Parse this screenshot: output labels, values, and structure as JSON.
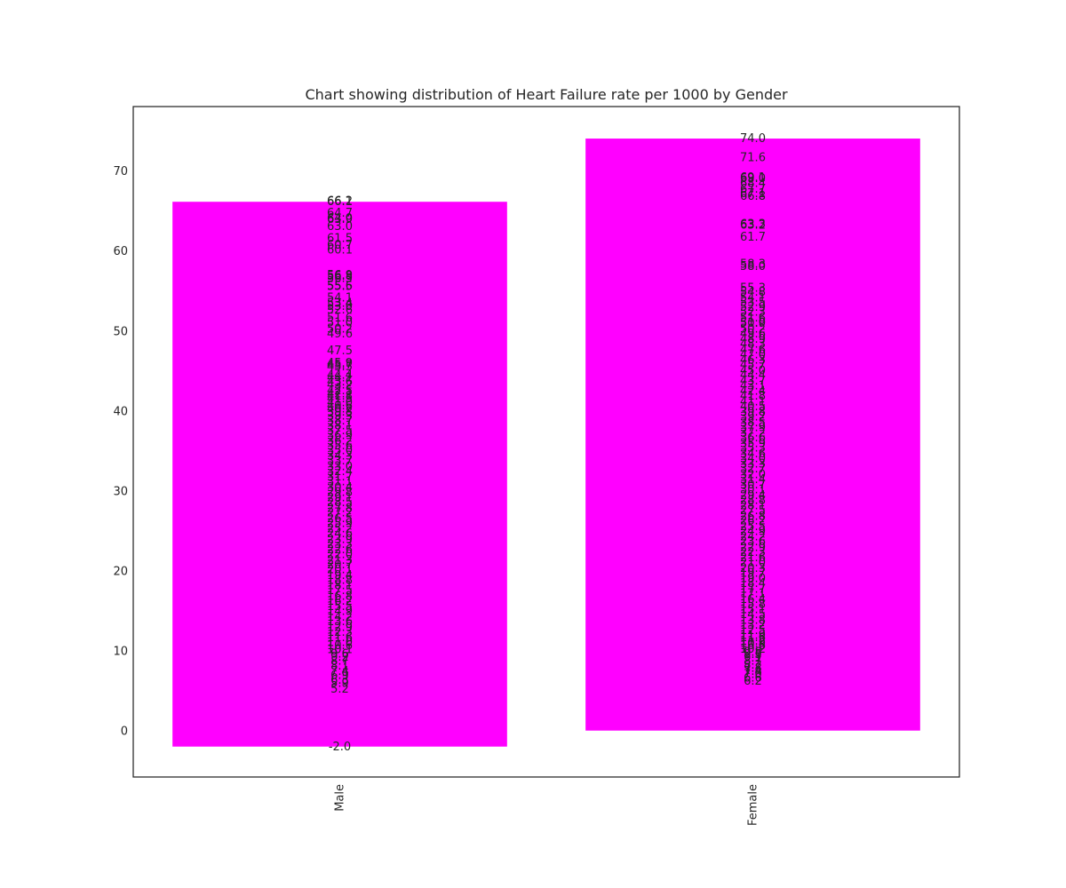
{
  "chart_data": {
    "type": "bar",
    "title": "Chart showing distribution of Heart Failure rate per 1000 by Gender",
    "xlabel": "",
    "ylabel": "",
    "categories": [
      "Male",
      "Female"
    ],
    "values": [
      66.1,
      74.0
    ],
    "bar_bottom": [
      -2.0,
      0
    ],
    "ylim": [
      -5.8,
      78.0
    ],
    "yticks": [
      0,
      10,
      20,
      30,
      40,
      50,
      60,
      70
    ],
    "grid": false,
    "bar_color": "#ff00ff",
    "x_tick_rotation": 90,
    "point_labels": [
      {
        "category": "Male",
        "values": [
          66.1,
          66.2,
          64.7,
          64.0,
          63.9,
          63.0,
          61.5,
          60.7,
          60.1,
          56.8,
          56.9,
          56.5,
          55.6,
          55.5,
          54.1,
          53.4,
          53.0,
          52.6,
          51.6,
          51.0,
          50.2,
          49.6,
          47.5,
          45.9,
          45.7,
          45.5,
          44.4,
          44.1,
          43.6,
          43.2,
          42.5,
          42.1,
          41.8,
          41.5,
          41.0,
          40.6,
          40.2,
          39.8,
          39.3,
          38.7,
          38.1,
          37.5,
          36.9,
          36.2,
          35.6,
          35.0,
          34.3,
          33.7,
          33.0,
          32.4,
          31.7,
          31.1,
          30.4,
          29.8,
          29.1,
          28.5,
          27.8,
          27.2,
          26.5,
          25.9,
          25.2,
          24.6,
          23.9,
          23.3,
          22.6,
          22.0,
          21.3,
          20.7,
          20.1,
          19.4,
          18.8,
          18.1,
          17.5,
          16.8,
          16.2,
          15.5,
          14.9,
          14.2,
          13.6,
          12.9,
          12.3,
          11.6,
          11.0,
          10.6,
          10.1,
          9.6,
          9.2,
          8.7,
          8.1,
          7.4,
          6.9,
          6.3,
          5.9,
          5.2,
          -2.0
        ]
      },
      {
        "category": "Female",
        "values": [
          74.0,
          71.6,
          69.1,
          69.0,
          68.4,
          67.7,
          67.1,
          66.8,
          63.3,
          63.2,
          61.7,
          58.3,
          58.0,
          55.3,
          54.8,
          54.1,
          53.5,
          52.9,
          52.3,
          51.6,
          51.0,
          50.9,
          50.2,
          49.6,
          48.9,
          48.3,
          47.6,
          47.0,
          46.3,
          45.7,
          45.0,
          44.4,
          43.7,
          43.1,
          42.4,
          41.8,
          41.1,
          40.5,
          39.8,
          39.2,
          38.5,
          37.9,
          37.2,
          36.6,
          35.9,
          35.3,
          34.6,
          34.0,
          33.3,
          32.7,
          32.0,
          31.4,
          30.7,
          30.1,
          29.4,
          28.8,
          28.1,
          27.5,
          26.8,
          26.2,
          25.5,
          24.9,
          24.2,
          23.6,
          22.9,
          22.3,
          21.6,
          21.0,
          20.3,
          19.7,
          19.0,
          18.4,
          17.7,
          17.1,
          16.4,
          15.8,
          15.1,
          14.5,
          13.8,
          13.2,
          12.5,
          11.9,
          11.6,
          11.2,
          10.9,
          10.6,
          10.2,
          9.8,
          9.5,
          9.1,
          8.7,
          8.2,
          7.8,
          7.4,
          7.0,
          6.6,
          6.2
        ]
      }
    ]
  }
}
